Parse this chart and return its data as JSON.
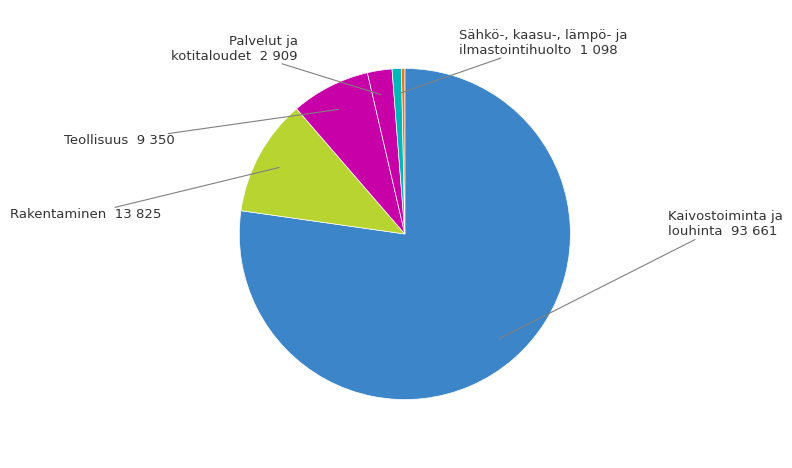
{
  "values": [
    93661,
    13825,
    9350,
    2909,
    1098,
    400
  ],
  "slice_colors": [
    "#3c85c8",
    "#b8d430",
    "#c800a8",
    "#c800a8",
    "#00b8b8",
    "#e07828"
  ],
  "background_color": "#ffffff",
  "font_size": 9.5,
  "labels": [
    "Kaivostoiminta ja\nlouhinta  93 661",
    "Rakentaminen  13 825",
    "Teollisuus  9 350",
    "Palvelut ja\nkotitaloudet  2 909",
    "Sähkö-, kaasu-, lämpö- ja\nilmastointihuolto  1 098",
    ""
  ],
  "label_positions": [
    [
      1.35,
      0.05
    ],
    [
      -1.25,
      0.1
    ],
    [
      -1.18,
      0.48
    ],
    [
      -0.55,
      0.95
    ],
    [
      0.28,
      0.98
    ],
    [
      null,
      null
    ]
  ],
  "label_ha": [
    "left",
    "right",
    "right",
    "right",
    "left",
    "left"
  ],
  "wedge_r": 0.52
}
